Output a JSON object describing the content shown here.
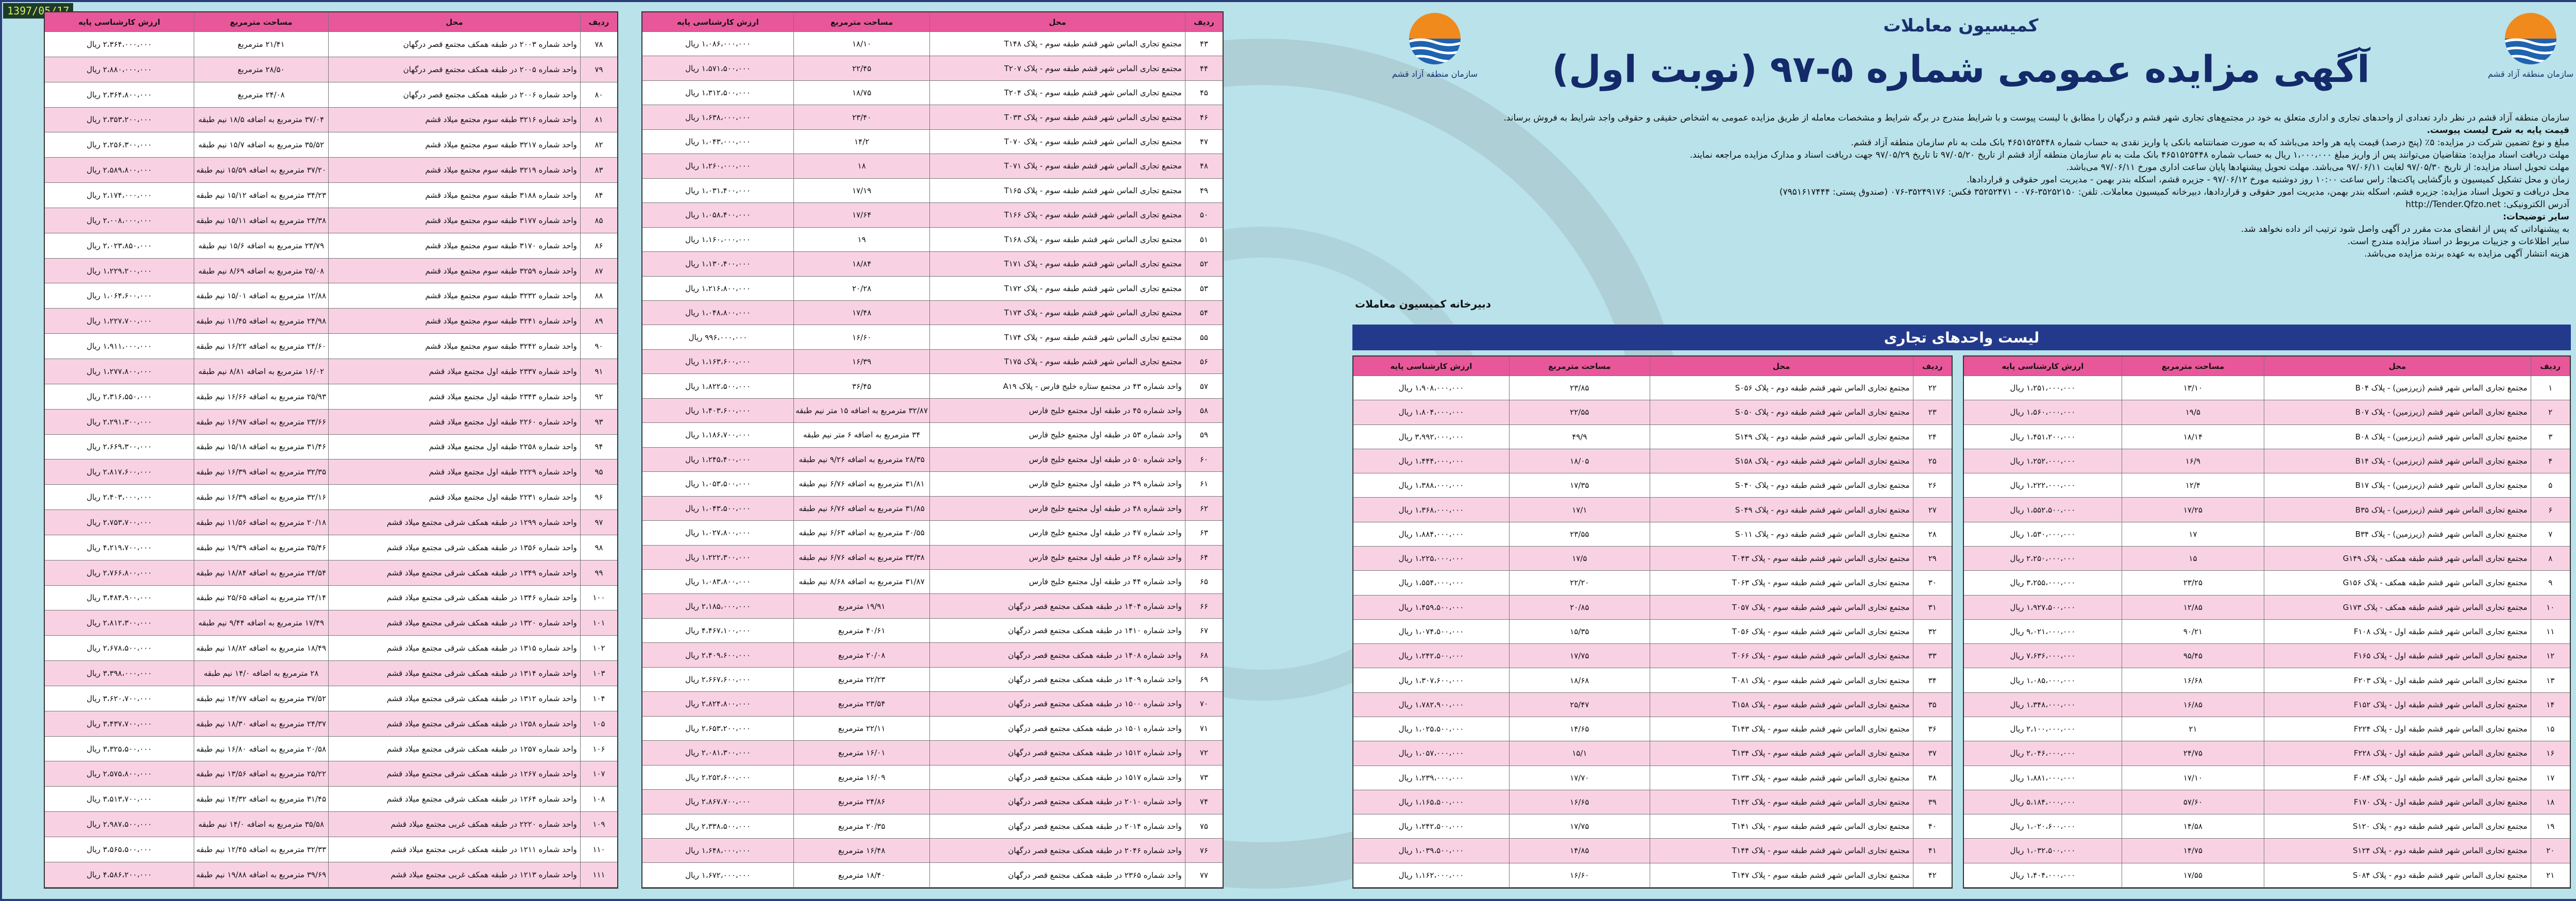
{
  "stamp": "1397/05/17",
  "header": {
    "commission": "کمیسیون معاملات",
    "title": "آگهی مزایده عمومی شماره ۵-۹۷ (نوبت اول)",
    "logo_caption": "سازمان منطقه آزاد قشم"
  },
  "body": [
    "سازمان منطقه آزاد قشم در نظر دارد تعدادی از واحدهای تجاری و اداری متعلق به خود در مجتمع‌های تجاری شهر قشم و درگهان را مطابق با لیست پیوست و با شرایط مندرج در برگه شرایط و مشخصات معامله از طریق مزایده عمومی به اشخاص حقیقی و حقوقی واجد شرایط به فروش برساند.",
    "قیمت پایه به شرح لیست پیوست.",
    "مبلغ و نوع تضمین شرکت در مزایده: ۵٪ (پنج درصد) قیمت پایه هر واحد می‌باشد که به صورت ضمانتنامه بانکی یا واریز نقدی به حساب شماره ۴۶۵۱۵۲۵۴۴۸ بانک ملت به نام سازمان منطقه آزاد قشم.",
    "مهلت دریافت اسناد مزایده: متقاضیان می‌توانند پس از واریز مبلغ ۱،۰۰۰،۰۰۰ ریال به حساب شماره ۴۶۵۱۵۲۵۴۴۸ بانک ملت به نام سازمان منطقه آزاد قشم از تاریخ ۹۷/۰۵/۲۰ تا تاریخ ۹۷/۰۵/۲۹ جهت دریافت اسناد و مدارک مزایده مراجعه نمایند.",
    "مهلت تحویل اسناد مزایده: از تاریخ ۹۷/۰۵/۳۰ لغایت ۹۷/۰۶/۱۱ می‌باشد. مهلت تحویل پیشنهادها پایان ساعت اداری مورخ ۹۷/۰۶/۱۱ می‌باشد.",
    "زمان و محل تشکیل کمیسیون و بازگشایی پاکت‌ها: راس ساعت ۱۰:۰۰ روز دوشنبه مورخ ۹۷/۰۶/۱۲ - جزیره قشم، اسکله بندر بهمن - مدیریت امور حقوقی و قراردادها.",
    "محل دریافت و تحویل اسناد مزایده: جزیره قشم، اسکله بندر بهمن، مدیریت امور حقوقی و قراردادها، دبیرخانه کمیسیون معاملات. تلفن: ۳۵۲۵۲۱۵۰-۰۷۶ - ۳۵۲۵۲۴۷۱ فکس: ۳۵۲۴۹۱۷۶-۰۷۶ (صندوق پستی: ۷۹۵۱۶۱۷۴۴۴)",
    "آدرس الکترونیکی: http://Tender.Qfzo.net"
  ],
  "notes_title": "سایر توضیحات:",
  "notes": [
    "به پیشنهاداتی که پس از انقضای مدت مقرر در آگهی واصل شود ترتیب اثر داده نخواهد شد.",
    "سایر اطلاعات و جزییات مربوط در اسناد مزایده مندرج است.",
    "هزینه انتشار آگهی مزایده به عهده برنده مزایده می‌باشد."
  ],
  "secretariat": "دبیرخانه کمیسیون معاملات",
  "list_title": "لیست واحدهای تجاری",
  "table_header": [
    "ردیف",
    "محل",
    "مساحت مترمربع",
    "ارزش کارشناسی پایه"
  ],
  "tables": [
    {
      "rows": [
        [
          "۱",
          "مجتمع تجاری الماس شهر قشم (زیرزمین) - پلاک B۰۴",
          "۱۳/۱۰",
          "۱،۲۵۱،۰۰۰،۰۰۰ ریال"
        ],
        [
          "۲",
          "مجتمع تجاری الماس شهر قشم (زیرزمین) - پلاک B۰۷",
          "۱۹/۵",
          "۱،۵۶۰،۰۰۰،۰۰۰ ریال"
        ],
        [
          "۳",
          "مجتمع تجاری الماس شهر قشم (زیرزمین) - پلاک B۰۸",
          "۱۸/۱۴",
          "۱،۴۵۱،۲۰۰،۰۰۰ ریال"
        ],
        [
          "۴",
          "مجتمع تجاری الماس شهر قشم (زیرزمین) - پلاک B۱۴",
          "۱۶/۹",
          "۱،۲۵۲،۰۰۰،۰۰۰ ریال"
        ],
        [
          "۵",
          "مجتمع تجاری الماس شهر قشم (زیرزمین) - پلاک B۱۷",
          "۱۲/۴",
          "۱،۲۲۲،۰۰۰،۰۰۰ ریال"
        ],
        [
          "۶",
          "مجتمع تجاری الماس شهر قشم (زیرزمین) - پلاک B۳۵",
          "۱۷/۲۵",
          "۱،۵۵۲،۵۰۰،۰۰۰ ریال"
        ],
        [
          "۷",
          "مجتمع تجاری الماس شهر قشم (زیرزمین) - پلاک B۳۴",
          "۱۷",
          "۱،۵۳۰،۰۰۰،۰۰۰ ریال"
        ],
        [
          "۸",
          "مجتمع تجاری الماس شهر قشم طبقه همکف - پلاک G۱۴۹",
          "۱۵",
          "۲،۲۵۰،۰۰۰،۰۰۰ ریال"
        ],
        [
          "۹",
          "مجتمع تجاری الماس شهر قشم طبقه همکف - پلاک G۱۵۶",
          "۲۳/۲۵",
          "۳،۲۵۵،۰۰۰،۰۰۰ ریال"
        ],
        [
          "۱۰",
          "مجتمع تجاری الماس شهر قشم طبقه همکف - پلاک G۱۷۳",
          "۱۲/۸۵",
          "۱،۹۲۷،۵۰۰،۰۰۰ ریال"
        ],
        [
          "۱۱",
          "مجتمع تجاری الماس شهر قشم طبقه اول - پلاک F۱۰۸",
          "۹۰/۲۱",
          "۹،۰۲۱،۰۰۰،۰۰۰ ریال"
        ],
        [
          "۱۲",
          "مجتمع تجاری الماس شهر قشم طبقه اول - پلاک F۱۶۵",
          "۹۵/۴۵",
          "۷،۶۳۶،۰۰۰،۰۰۰ ریال"
        ],
        [
          "۱۳",
          "مجتمع تجاری الماس شهر قشم طبقه اول - پلاک F۲۰۳",
          "۱۶/۶۸",
          "۱،۰۸۵،۰۰۰،۰۰۰ ریال"
        ],
        [
          "۱۴",
          "مجتمع تجاری الماس شهر قشم طبقه اول - پلاک F۱۵۲",
          "۱۶/۸۵",
          "۱،۳۴۸،۰۰۰،۰۰۰ ریال"
        ],
        [
          "۱۵",
          "مجتمع تجاری الماس شهر قشم طبقه اول - پلاک F۲۲۴",
          "۲۱",
          "۲،۱۰۰،۰۰۰،۰۰۰ ریال"
        ],
        [
          "۱۶",
          "مجتمع تجاری الماس شهر قشم طبقه اول - پلاک F۲۲۸",
          "۲۴/۷۵",
          "۲،۰۴۶،۰۰۰،۰۰۰ ریال"
        ],
        [
          "۱۷",
          "مجتمع تجاری الماس شهر قشم طبقه اول - پلاک F۰۸۴",
          "۱۷/۱۰",
          "۱،۸۸۱،۰۰۰،۰۰۰ ریال"
        ],
        [
          "۱۸",
          "مجتمع تجاری الماس شهر قشم طبقه اول - پلاک F۱۷۰",
          "۵۷/۶۰",
          "۵،۱۸۴،۰۰۰،۰۰۰ ریال"
        ],
        [
          "۱۹",
          "مجتمع تجاری الماس شهر قشم طبقه دوم - پلاک S۱۲۰",
          "۱۴/۵۸",
          "۱،۰۲۰،۶۰۰،۰۰۰ ریال"
        ],
        [
          "۲۰",
          "مجتمع تجاری الماس شهر قشم طبقه دوم - پلاک S۱۲۴",
          "۱۴/۷۵",
          "۱،۰۳۲،۵۰۰،۰۰۰ ریال"
        ],
        [
          "۲۱",
          "مجتمع تجاری الماس شهر قشم طبقه دوم - پلاک S۰۸۴",
          "۱۷/۵۵",
          "۱،۴۰۴،۰۰۰،۰۰۰ ریال"
        ]
      ]
    },
    {
      "rows": [
        [
          "۲۲",
          "مجتمع تجاری الماس شهر قشم طبقه دوم - پلاک S۰۵۶",
          "۲۳/۸۵",
          "۱،۹۰۸،۰۰۰،۰۰۰ ریال"
        ],
        [
          "۲۳",
          "مجتمع تجاری الماس شهر قشم طبقه دوم - پلاک S۰۵۰",
          "۲۲/۵۵",
          "۱،۸۰۴،۰۰۰،۰۰۰ ریال"
        ],
        [
          "۲۴",
          "مجتمع تجاری الماس شهر قشم طبقه دوم - پلاک S۱۴۹",
          "۴۹/۹",
          "۳،۹۹۲،۰۰۰،۰۰۰ ریال"
        ],
        [
          "۲۵",
          "مجتمع تجاری الماس شهر قشم طبقه دوم - پلاک S۱۵۸",
          "۱۸/۰۵",
          "۱،۴۴۴،۰۰۰،۰۰۰ ریال"
        ],
        [
          "۲۶",
          "مجتمع تجاری الماس شهر قشم طبقه دوم - پلاک S۰۴۰",
          "۱۷/۳۵",
          "۱،۳۸۸،۰۰۰،۰۰۰ ریال"
        ],
        [
          "۲۷",
          "مجتمع تجاری الماس شهر قشم طبقه دوم - پلاک S۰۴۹",
          "۱۷/۱",
          "۱،۳۶۸،۰۰۰،۰۰۰ ریال"
        ],
        [
          "۲۸",
          "مجتمع تجاری الماس شهر قشم طبقه دوم - پلاک S۰۱۱",
          "۲۳/۵۵",
          "۱،۸۸۴،۰۰۰،۰۰۰ ریال"
        ],
        [
          "۲۹",
          "مجتمع تجاری الماس شهر قشم طبقه سوم - پلاک T۰۴۳",
          "۱۷/۵",
          "۱،۲۲۵،۰۰۰،۰۰۰ ریال"
        ],
        [
          "۳۰",
          "مجتمع تجاری الماس شهر قشم طبقه سوم - پلاک T۰۶۳",
          "۲۲/۲۰",
          "۱،۵۵۴،۰۰۰،۰۰۰ ریال"
        ],
        [
          "۳۱",
          "مجتمع تجاری الماس شهر قشم طبقه سوم - پلاک T۰۵۷",
          "۲۰/۸۵",
          "۱،۴۵۹،۵۰۰،۰۰۰ ریال"
        ],
        [
          "۳۲",
          "مجتمع تجاری الماس شهر قشم طبقه سوم - پلاک T۰۵۶",
          "۱۵/۳۵",
          "۱،۰۷۴،۵۰۰،۰۰۰ ریال"
        ],
        [
          "۳۳",
          "مجتمع تجاری الماس شهر قشم طبقه سوم - پلاک T۰۶۶",
          "۱۷/۷۵",
          "۱،۲۴۲،۵۰۰،۰۰۰ ریال"
        ],
        [
          "۳۴",
          "مجتمع تجاری الماس شهر قشم طبقه سوم - پلاک T۰۸۱",
          "۱۸/۶۸",
          "۱،۳۰۷،۶۰۰،۰۰۰ ریال"
        ],
        [
          "۳۵",
          "مجتمع تجاری الماس شهر قشم طبقه سوم - پلاک T۱۵۸",
          "۲۵/۴۷",
          "۱،۷۸۲،۹۰۰،۰۰۰ ریال"
        ],
        [
          "۳۶",
          "مجتمع تجاری الماس شهر قشم طبقه سوم - پلاک T۱۴۳",
          "۱۴/۶۵",
          "۱،۰۲۵،۵۰۰،۰۰۰ ریال"
        ],
        [
          "۳۷",
          "مجتمع تجاری الماس شهر قشم طبقه سوم - پلاک T۱۳۴",
          "۱۵/۱",
          "۱،۰۵۷،۰۰۰،۰۰۰ ریال"
        ],
        [
          "۳۸",
          "مجتمع تجاری الماس شهر قشم طبقه سوم - پلاک T۱۳۳",
          "۱۷/۷۰",
          "۱،۲۳۹،۰۰۰،۰۰۰ ریال"
        ],
        [
          "۳۹",
          "مجتمع تجاری الماس شهر قشم طبقه سوم - پلاک T۱۴۲",
          "۱۶/۶۵",
          "۱،۱۶۵،۵۰۰،۰۰۰ ریال"
        ],
        [
          "۴۰",
          "مجتمع تجاری الماس شهر قشم طبقه سوم - پلاک T۱۴۱",
          "۱۷/۷۵",
          "۱،۲۴۲،۵۰۰،۰۰۰ ریال"
        ],
        [
          "۴۱",
          "مجتمع تجاری الماس شهر قشم طبقه سوم - پلاک T۱۴۴",
          "۱۴/۸۵",
          "۱،۰۳۹،۵۰۰،۰۰۰ ریال"
        ],
        [
          "۴۲",
          "مجتمع تجاری الماس شهر قشم طبقه سوم - پلاک T۱۴۷",
          "۱۶/۶۰",
          "۱،۱۶۲،۰۰۰،۰۰۰ ریال"
        ]
      ]
    },
    {
      "rows": [
        [
          "۴۳",
          "مجتمع تجاری الماس شهر قشم طبقه سوم - پلاک T۱۴۸",
          "۱۸/۱۰",
          "۱،۰۸۶،۰۰۰،۰۰۰ ریال"
        ],
        [
          "۴۴",
          "مجتمع تجاری الماس شهر قشم طبقه سوم - پلاک T۲۰۷",
          "۲۲/۴۵",
          "۱،۵۷۱،۵۰۰،۰۰۰ ریال"
        ],
        [
          "۴۵",
          "مجتمع تجاری الماس شهر قشم طبقه سوم - پلاک T۲۰۴",
          "۱۸/۷۵",
          "۱،۳۱۲،۵۰۰،۰۰۰ ریال"
        ],
        [
          "۴۶",
          "مجتمع تجاری الماس شهر قشم طبقه سوم - پلاک T۰۳۳",
          "۲۳/۴۰",
          "۱،۶۳۸،۰۰۰،۰۰۰ ریال"
        ],
        [
          "۴۷",
          "مجتمع تجاری الماس شهر قشم طبقه سوم - پلاک T۰۷۰",
          "۱۴/۲",
          "۱،۰۴۳،۰۰۰،۰۰۰ ریال"
        ],
        [
          "۴۸",
          "مجتمع تجاری الماس شهر قشم طبقه سوم - پلاک T۰۷۱",
          "۱۸",
          "۱،۲۶۰،۰۰۰،۰۰۰ ریال"
        ],
        [
          "۴۹",
          "مجتمع تجاری الماس شهر قشم طبقه سوم - پلاک T۱۶۵",
          "۱۷/۱۹",
          "۱،۰۳۱،۴۰۰،۰۰۰ ریال"
        ],
        [
          "۵۰",
          "مجتمع تجاری الماس شهر قشم طبقه سوم - پلاک T۱۶۶",
          "۱۷/۶۴",
          "۱،۰۵۸،۴۰۰،۰۰۰ ریال"
        ],
        [
          "۵۱",
          "مجتمع تجاری الماس شهر قشم طبقه سوم - پلاک T۱۶۸",
          "۱۹",
          "۱،۱۶۰،۰۰۰،۰۰۰ ریال"
        ],
        [
          "۵۲",
          "مجتمع تجاری الماس شهر قشم طبقه سوم - پلاک T۱۷۱",
          "۱۸/۸۴",
          "۱،۱۳۰،۴۰۰،۰۰۰ ریال"
        ],
        [
          "۵۳",
          "مجتمع تجاری الماس شهر قشم طبقه سوم - پلاک T۱۷۲",
          "۲۰/۲۸",
          "۱،۲۱۶،۸۰۰،۰۰۰ ریال"
        ],
        [
          "۵۴",
          "مجتمع تجاری الماس شهر قشم طبقه سوم - پلاک T۱۷۳",
          "۱۷/۴۸",
          "۱،۰۴۸،۸۰۰،۰۰۰ ریال"
        ],
        [
          "۵۵",
          "مجتمع تجاری الماس شهر قشم طبقه سوم - پلاک T۱۷۴",
          "۱۶/۶۰",
          "۹۹۶،۰۰۰،۰۰۰ ریال"
        ],
        [
          "۵۶",
          "مجتمع تجاری الماس شهر قشم طبقه سوم - پلاک T۱۷۵",
          "۱۶/۳۹",
          "۱،۱۶۳،۶۰۰،۰۰۰ ریال"
        ],
        [
          "۵۷",
          "واحد شماره ۴۳ در مجتمع ستاره خلیج فارس - پلاک A۱۹",
          "۳۶/۴۵",
          "۱،۸۲۲،۵۰۰،۰۰۰ ریال"
        ],
        [
          "۵۸",
          "واحد شماره ۴۵ در طبقه اول مجتمع خلیج فارس",
          "۳۲/۸۷ مترمربع به اضافه ۱۵ متر نیم طبقه",
          "۱،۴۰۳،۶۰۰،۰۰۰ ریال"
        ],
        [
          "۵۹",
          "واحد شماره ۵۳ در طبقه اول مجتمع خلیج فارس",
          "۳۴ مترمربع به اضافه ۶ متر نیم طبقه",
          "۱،۱۸۶،۷۰۰،۰۰۰ ریال"
        ],
        [
          "۶۰",
          "واحد شماره ۵۰ در طبقه اول مجتمع خلیج فارس",
          "۲۸/۳۵ مترمربع به اضافه ۹/۲۶ نیم طبقه",
          "۱،۲۴۵،۴۰۰،۰۰۰ ریال"
        ],
        [
          "۶۱",
          "واحد شماره ۴۹ در طبقه اول مجتمع خلیج فارس",
          "۳۱/۸۱ مترمربع به اضافه ۶/۷۶ نیم طبقه",
          "۱،۰۵۳،۵۰۰،۰۰۰ ریال"
        ],
        [
          "۶۲",
          "واحد شماره ۴۸ در طبقه اول مجتمع خلیج فارس",
          "۳۱/۸۵ مترمربع به اضافه ۶/۷۶ نیم طبقه",
          "۱،۰۴۳،۵۰۰،۰۰۰ ریال"
        ],
        [
          "۶۳",
          "واحد شماره ۴۷ در طبقه اول مجتمع خلیج فارس",
          "۳۰/۵۵ مترمربع به اضافه ۶/۶۳ نیم طبقه",
          "۱،۰۲۷،۸۰۰،۰۰۰ ریال"
        ],
        [
          "۶۴",
          "واحد شماره ۴۶ در طبقه اول مجتمع خلیج فارس",
          "۳۳/۳۸ مترمربع به اضافه ۶/۷۶ نیم طبقه",
          "۱،۲۲۲،۳۰۰،۰۰۰ ریال"
        ],
        [
          "۶۵",
          "واحد شماره ۴۴ در طبقه اول مجتمع خلیج فارس",
          "۳۱/۸۷ مترمربع به اضافه ۸/۶۸ نیم طبقه",
          "۱،۰۸۳،۸۰۰،۰۰۰ ریال"
        ],
        [
          "۶۶",
          "واحد شماره ۱۴۰۴ در طبقه همکف مجتمع قصر درگهان",
          "۱۹/۹۱ مترمربع",
          "۲،۱۸۵،۰۰۰،۰۰۰ ریال"
        ],
        [
          "۶۷",
          "واحد شماره ۱۴۱۰ در طبقه همکف مجتمع قصر درگهان",
          "۴۰/۶۱ مترمربع",
          "۴،۴۶۷،۱۰۰،۰۰۰ ریال"
        ],
        [
          "۶۸",
          "واحد شماره ۱۴۰۸ در طبقه همکف مجتمع قصر درگهان",
          "۲۰/۰۸ مترمربع",
          "۲،۴۰۹،۶۰۰،۰۰۰ ریال"
        ],
        [
          "۶۹",
          "واحد شماره ۱۴۰۹ در طبقه همکف مجتمع قصر درگهان",
          "۲۲/۲۳ مترمربع",
          "۲،۶۶۷،۶۰۰،۰۰۰ ریال"
        ],
        [
          "۷۰",
          "واحد شماره ۱۵۰۰ در طبقه همکف مجتمع قصر درگهان",
          "۲۳/۵۴ مترمربع",
          "۲،۸۲۴،۸۰۰،۰۰۰ ریال"
        ],
        [
          "۷۱",
          "واحد شماره ۱۵۰۱ در طبقه همکف مجتمع قصر درگهان",
          "۲۲/۱۱ مترمربع",
          "۲،۶۵۳،۲۰۰،۰۰۰ ریال"
        ],
        [
          "۷۲",
          "واحد شماره ۱۵۱۲ در طبقه همکف مجتمع قصر درگهان",
          "۱۶/۰۱ مترمربع",
          "۲،۰۸۱،۳۰۰،۰۰۰ ریال"
        ],
        [
          "۷۳",
          "واحد شماره ۱۵۱۷ در طبقه همکف مجتمع قصر درگهان",
          "۱۶/۰۹ مترمربع",
          "۲،۲۵۲،۶۰۰،۰۰۰ ریال"
        ],
        [
          "۷۴",
          "واحد شماره ۲۰۱۰ در طبقه همکف مجتمع قصر درگهان",
          "۲۴/۸۶ مترمربع",
          "۲،۸۶۷،۷۰۰،۰۰۰ ریال"
        ],
        [
          "۷۵",
          "واحد شماره ۲۰۱۴ در طبقه همکف مجتمع قصر درگهان",
          "۲۰/۳۵ مترمربع",
          "۲،۳۳۸،۵۰۰،۰۰۰ ریال"
        ],
        [
          "۷۶",
          "واحد شماره ۲۰۴۶ در طبقه همکف مجتمع قصر درگهان",
          "۱۶/۴۸ مترمربع",
          "۱،۶۴۸،۰۰۰،۰۰۰ ریال"
        ],
        [
          "۷۷",
          "واحد شماره ۲۳۶۵ در طبقه همکف مجتمع قصر درگهان",
          "۱۸/۴۰ مترمربع",
          "۱،۶۷۲،۰۰۰،۰۰۰ ریال"
        ]
      ]
    },
    {
      "rows": [
        [
          "۷۸",
          "واحد شماره ۲۰۰۳ در طبقه همکف مجتمع قصر درگهان",
          "۲۱/۴۱ مترمربع",
          "۲،۳۶۴،۰۰۰،۰۰۰ ریال"
        ],
        [
          "۷۹",
          "واحد شماره ۲۰۰۵ در طبقه همکف مجتمع قصر درگهان",
          "۲۸/۵۰ مترمربع",
          "۲،۸۸۰،۰۰۰،۰۰۰ ریال"
        ],
        [
          "۸۰",
          "واحد شماره ۲۰۰۶ در طبقه همکف مجتمع قصر درگهان",
          "۲۴/۰۸ مترمربع",
          "۲،۳۶۴،۸۰۰،۰۰۰ ریال"
        ],
        [
          "۸۱",
          "واحد شماره ۳۲۱۶ طبقه سوم مجتمع میلاد قشم",
          "۳۷/۰۴ مترمربع به اضافه ۱۸/۵ نیم طبقه",
          "۲،۳۵۳،۲۰۰،۰۰۰ ریال"
        ],
        [
          "۸۲",
          "واحد شماره ۳۲۱۷ طبقه سوم مجتمع میلاد قشم",
          "۳۵/۵۲ مترمربع به اضافه ۱۵/۷ نیم طبقه",
          "۲،۲۵۶،۳۰۰،۰۰۰ ریال"
        ],
        [
          "۸۳",
          "واحد شماره ۳۲۱۹ طبقه سوم مجتمع میلاد قشم",
          "۳۷/۲۰ مترمربع به اضافه ۱۵/۵۹ نیم طبقه",
          "۲،۵۸۹،۸۰۰،۰۰۰ ریال"
        ],
        [
          "۸۴",
          "واحد شماره ۳۱۸۸ طبقه سوم مجتمع میلاد قشم",
          "۳۴/۲۳ مترمربع به اضافه ۱۵/۱۲ نیم طبقه",
          "۲،۱۷۴،۰۰۰،۰۰۰ ریال"
        ],
        [
          "۸۵",
          "واحد شماره ۳۱۷۷ طبقه سوم مجتمع میلاد قشم",
          "۲۴/۳۸ مترمربع به اضافه ۱۵/۱۱ نیم طبقه",
          "۲،۰۰۸،۰۰۰،۰۰۰ ریال"
        ],
        [
          "۸۶",
          "واحد شماره ۳۱۷۰ طبقه سوم مجتمع میلاد قشم",
          "۲۳/۷۹ مترمربع به اضافه ۱۵/۶ نیم طبقه",
          "۲،۰۲۳،۸۵۰،۰۰۰ ریال"
        ],
        [
          "۸۷",
          "واحد شماره ۳۲۵۹ طبقه سوم مجتمع میلاد قشم",
          "۲۵/۰۸ مترمربع به اضافه ۸/۶۹ نیم طبقه",
          "۱،۲۲۹،۲۰۰،۰۰۰ ریال"
        ],
        [
          "۸۸",
          "واحد شماره ۳۲۳۲ طبقه سوم مجتمع میلاد قشم",
          "۱۲/۸۸ مترمربع به اضافه ۱۵/۰۱ نیم طبقه",
          "۱،۰۶۴،۶۰۰،۰۰۰ ریال"
        ],
        [
          "۸۹",
          "واحد شماره ۳۲۴۱ طبقه سوم مجتمع میلاد قشم",
          "۲۴/۹۸ مترمربع به اضافه ۱۱/۴۵ نیم طبقه",
          "۱،۲۲۷،۷۰۰،۰۰۰ ریال"
        ],
        [
          "۹۰",
          "واحد شماره ۳۲۴۲ طبقه سوم مجتمع میلاد قشم",
          "۲۴/۶۰ مترمربع به اضافه ۱۶/۲۲ نیم طبقه",
          "۱،۹۱۱،۰۰۰،۰۰۰ ریال"
        ],
        [
          "۹۱",
          "واحد شماره ۲۳۳۷ طبقه اول مجتمع میلاد قشم",
          "۱۶/۰۲ مترمربع به اضافه ۸/۸۱ نیم طبقه",
          "۱،۲۷۷،۸۰۰،۰۰۰ ریال"
        ],
        [
          "۹۲",
          "واحد شماره ۲۳۴۳ طبقه اول مجتمع میلاد قشم",
          "۲۵/۹۳ مترمربع به اضافه ۱۶/۶۶ نیم طبقه",
          "۲،۳۱۶،۵۵۰،۰۰۰ ریال"
        ],
        [
          "۹۳",
          "واحد شماره ۲۲۶۰ طبقه اول مجتمع میلاد قشم",
          "۲۳/۶۶ مترمربع به اضافه ۱۶/۹۷ نیم طبقه",
          "۲،۲۹۱،۳۰۰،۰۰۰ ریال"
        ],
        [
          "۹۴",
          "واحد شماره ۲۲۵۸ طبقه اول مجتمع میلاد قشم",
          "۳۱/۴۶ مترمربع به اضافه ۱۵/۱۸ نیم طبقه",
          "۲،۶۶۹،۳۰۰،۰۰۰ ریال"
        ],
        [
          "۹۵",
          "واحد شماره ۲۲۲۹ طبقه اول مجتمع میلاد قشم",
          "۳۲/۳۵ مترمربع به اضافه ۱۶/۳۹ نیم طبقه",
          "۲،۸۱۷،۶۰۰،۰۰۰ ریال"
        ],
        [
          "۹۶",
          "واحد شماره ۲۲۳۱ طبقه اول مجتمع میلاد قشم",
          "۳۲/۱۶ مترمربع به اضافه ۱۶/۳۹ نیم طبقه",
          "۲،۴۰۳،۰۰۰،۰۰۰ ریال"
        ],
        [
          "۹۷",
          "واحد شماره ۱۲۹۹ در طبقه همکف شرقی مجتمع میلاد قشم",
          "۲۰/۱۸ مترمربع به اضافه ۱۱/۵۶ نیم طبقه",
          "۲،۷۵۳،۷۰۰،۰۰۰ ریال"
        ],
        [
          "۹۸",
          "واحد شماره ۱۳۵۶ در طبقه همکف شرقی مجتمع میلاد قشم",
          "۳۵/۴۶ مترمربع به اضافه ۱۹/۳۹ نیم طبقه",
          "۴،۲۱۹،۷۰۰،۰۰۰ ریال"
        ],
        [
          "۹۹",
          "واحد شماره ۱۳۴۹ در طبقه همکف شرقی مجتمع میلاد قشم",
          "۲۴/۵۴ مترمربع به اضافه ۱۸/۸۴ نیم طبقه",
          "۲،۷۶۶،۸۰۰،۰۰۰ ریال"
        ],
        [
          "۱۰۰",
          "واحد شماره ۱۳۴۶ در طبقه همکف شرقی مجتمع میلاد قشم",
          "۲۴/۱۴ مترمربع به اضافه ۲۵/۶۵ نیم طبقه",
          "۳،۴۸۴،۹۰۰،۰۰۰ ریال"
        ],
        [
          "۱۰۱",
          "واحد شماره ۱۳۲۰ در طبقه همکف شرقی مجتمع میلاد قشم",
          "۱۷/۴۹ مترمربع به اضافه ۹/۴۴ نیم طبقه",
          "۲،۸۱۲،۳۰۰،۰۰۰ ریال"
        ],
        [
          "۱۰۲",
          "واحد شماره ۱۳۱۵ در طبقه همکف شرقی مجتمع میلاد قشم",
          "۱۸/۴۹ مترمربع به اضافه ۱۸/۸۲ نیم طبقه",
          "۲،۶۷۸،۵۰۰،۰۰۰ ریال"
        ],
        [
          "۱۰۳",
          "واحد شماره ۱۳۱۴ در طبقه همکف شرقی مجتمع میلاد قشم",
          "۲۸ مترمربع به اضافه ۱۴/۰ نیم طبقه",
          "۳،۳۹۸،۰۰۰،۰۰۰ ریال"
        ],
        [
          "۱۰۴",
          "واحد شماره ۱۳۱۲ در طبقه همکف شرقی مجتمع میلاد قشم",
          "۳۷/۵۲ مترمربع به اضافه ۱۴/۷۷ نیم طبقه",
          "۳،۶۲۰،۷۰۰،۰۰۰ ریال"
        ],
        [
          "۱۰۵",
          "واحد شماره ۱۲۵۸ در طبقه همکف شرقی مجتمع میلاد قشم",
          "۲۴/۳۷ مترمربع به اضافه ۱۸/۳۰ نیم طبقه",
          "۳،۴۳۷،۷۰۰،۰۰۰ ریال"
        ],
        [
          "۱۰۶",
          "واحد شماره ۱۲۵۷ در طبقه همکف شرقی مجتمع میلاد قشم",
          "۲۰/۵۸ مترمربع به اضافه ۱۶/۸۰ نیم طبقه",
          "۳،۳۲۵،۵۰۰،۰۰۰ ریال"
        ],
        [
          "۱۰۷",
          "واحد شماره ۱۲۶۷ در طبقه همکف شرقی مجتمع میلاد قشم",
          "۲۵/۲۲ مترمربع به اضافه ۱۳/۵۶ نیم طبقه",
          "۲،۵۷۵،۸۰۰،۰۰۰ ریال"
        ],
        [
          "۱۰۸",
          "واحد شماره ۱۲۶۴ در طبقه همکف شرقی مجتمع میلاد قشم",
          "۳۱/۴۵ مترمربع به اضافه ۱۴/۳۲ نیم طبقه",
          "۳،۵۱۳،۷۰۰،۰۰۰ ریال"
        ],
        [
          "۱۰۹",
          "واحد شماره ۲۲۲۰ در طبقه همکف غربی مجتمع میلاد قشم",
          "۳۵/۵۸ مترمربع به اضافه ۱۴/۰ نیم طبقه",
          "۲،۹۸۷،۵۰۰،۰۰۰ ریال"
        ],
        [
          "۱۱۰",
          "واحد شماره ۱۲۱۱ در طبقه همکف غربی مجتمع میلاد قشم",
          "۳۲/۳۳ مترمربع به اضافه ۱۲/۴۵ نیم طبقه",
          "۳،۵۶۵،۵۰۰،۰۰۰ ریال"
        ],
        [
          "۱۱۱",
          "واحد شماره ۱۲۱۳ در طبقه همکف غربی مجتمع میلاد قشم",
          "۳۹/۶۹ مترمربع به اضافه ۱۹/۸۸ نیم طبقه",
          "۴،۵۸۶،۲۰۰،۰۰۰ ریال"
        ]
      ]
    }
  ]
}
